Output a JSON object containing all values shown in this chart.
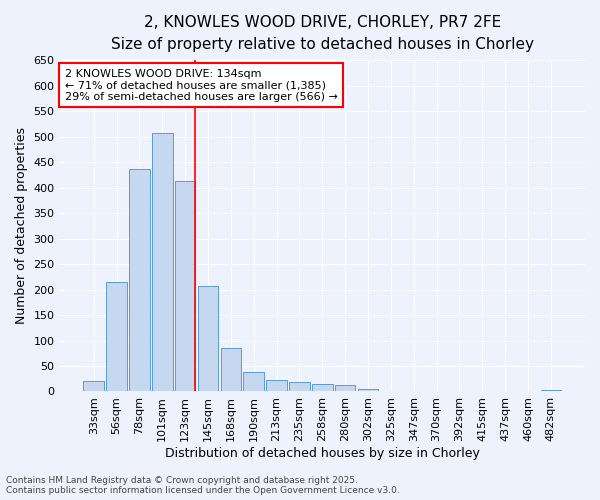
{
  "title_line1": "2, KNOWLES WOOD DRIVE, CHORLEY, PR7 2FE",
  "title_line2": "Size of property relative to detached houses in Chorley",
  "xlabel": "Distribution of detached houses by size in Chorley",
  "ylabel": "Number of detached properties",
  "bin_labels": [
    "33sqm",
    "56sqm",
    "78sqm",
    "101sqm",
    "123sqm",
    "145sqm",
    "168sqm",
    "190sqm",
    "213sqm",
    "235sqm",
    "258sqm",
    "280sqm",
    "302sqm",
    "325sqm",
    "347sqm",
    "370sqm",
    "392sqm",
    "415sqm",
    "437sqm",
    "460sqm",
    "482sqm"
  ],
  "bin_values": [
    20,
    215,
    437,
    507,
    413,
    207,
    85,
    38,
    22,
    18,
    15,
    12,
    5,
    0,
    0,
    0,
    0,
    0,
    0,
    0,
    2
  ],
  "bar_color": "#c5d8f0",
  "bar_edgecolor": "#5b9bd5",
  "annotation_text": "2 KNOWLES WOOD DRIVE: 134sqm\n← 71% of detached houses are smaller (1,385)\n29% of semi-detached houses are larger (566) →",
  "annotation_box_color": "white",
  "annotation_box_edgecolor": "red",
  "vline_color": "red",
  "vline_x": 4.42,
  "ylim": [
    0,
    650
  ],
  "yticks": [
    0,
    50,
    100,
    150,
    200,
    250,
    300,
    350,
    400,
    450,
    500,
    550,
    600,
    650
  ],
  "bg_color": "#eef2fc",
  "grid_color": "white",
  "footer_line1": "Contains HM Land Registry data © Crown copyright and database right 2025.",
  "footer_line2": "Contains public sector information licensed under the Open Government Licence v3.0.",
  "title_fontsize": 11,
  "subtitle_fontsize": 9.5,
  "axis_label_fontsize": 9,
  "tick_fontsize": 8,
  "annotation_fontsize": 8,
  "footer_fontsize": 6.5
}
